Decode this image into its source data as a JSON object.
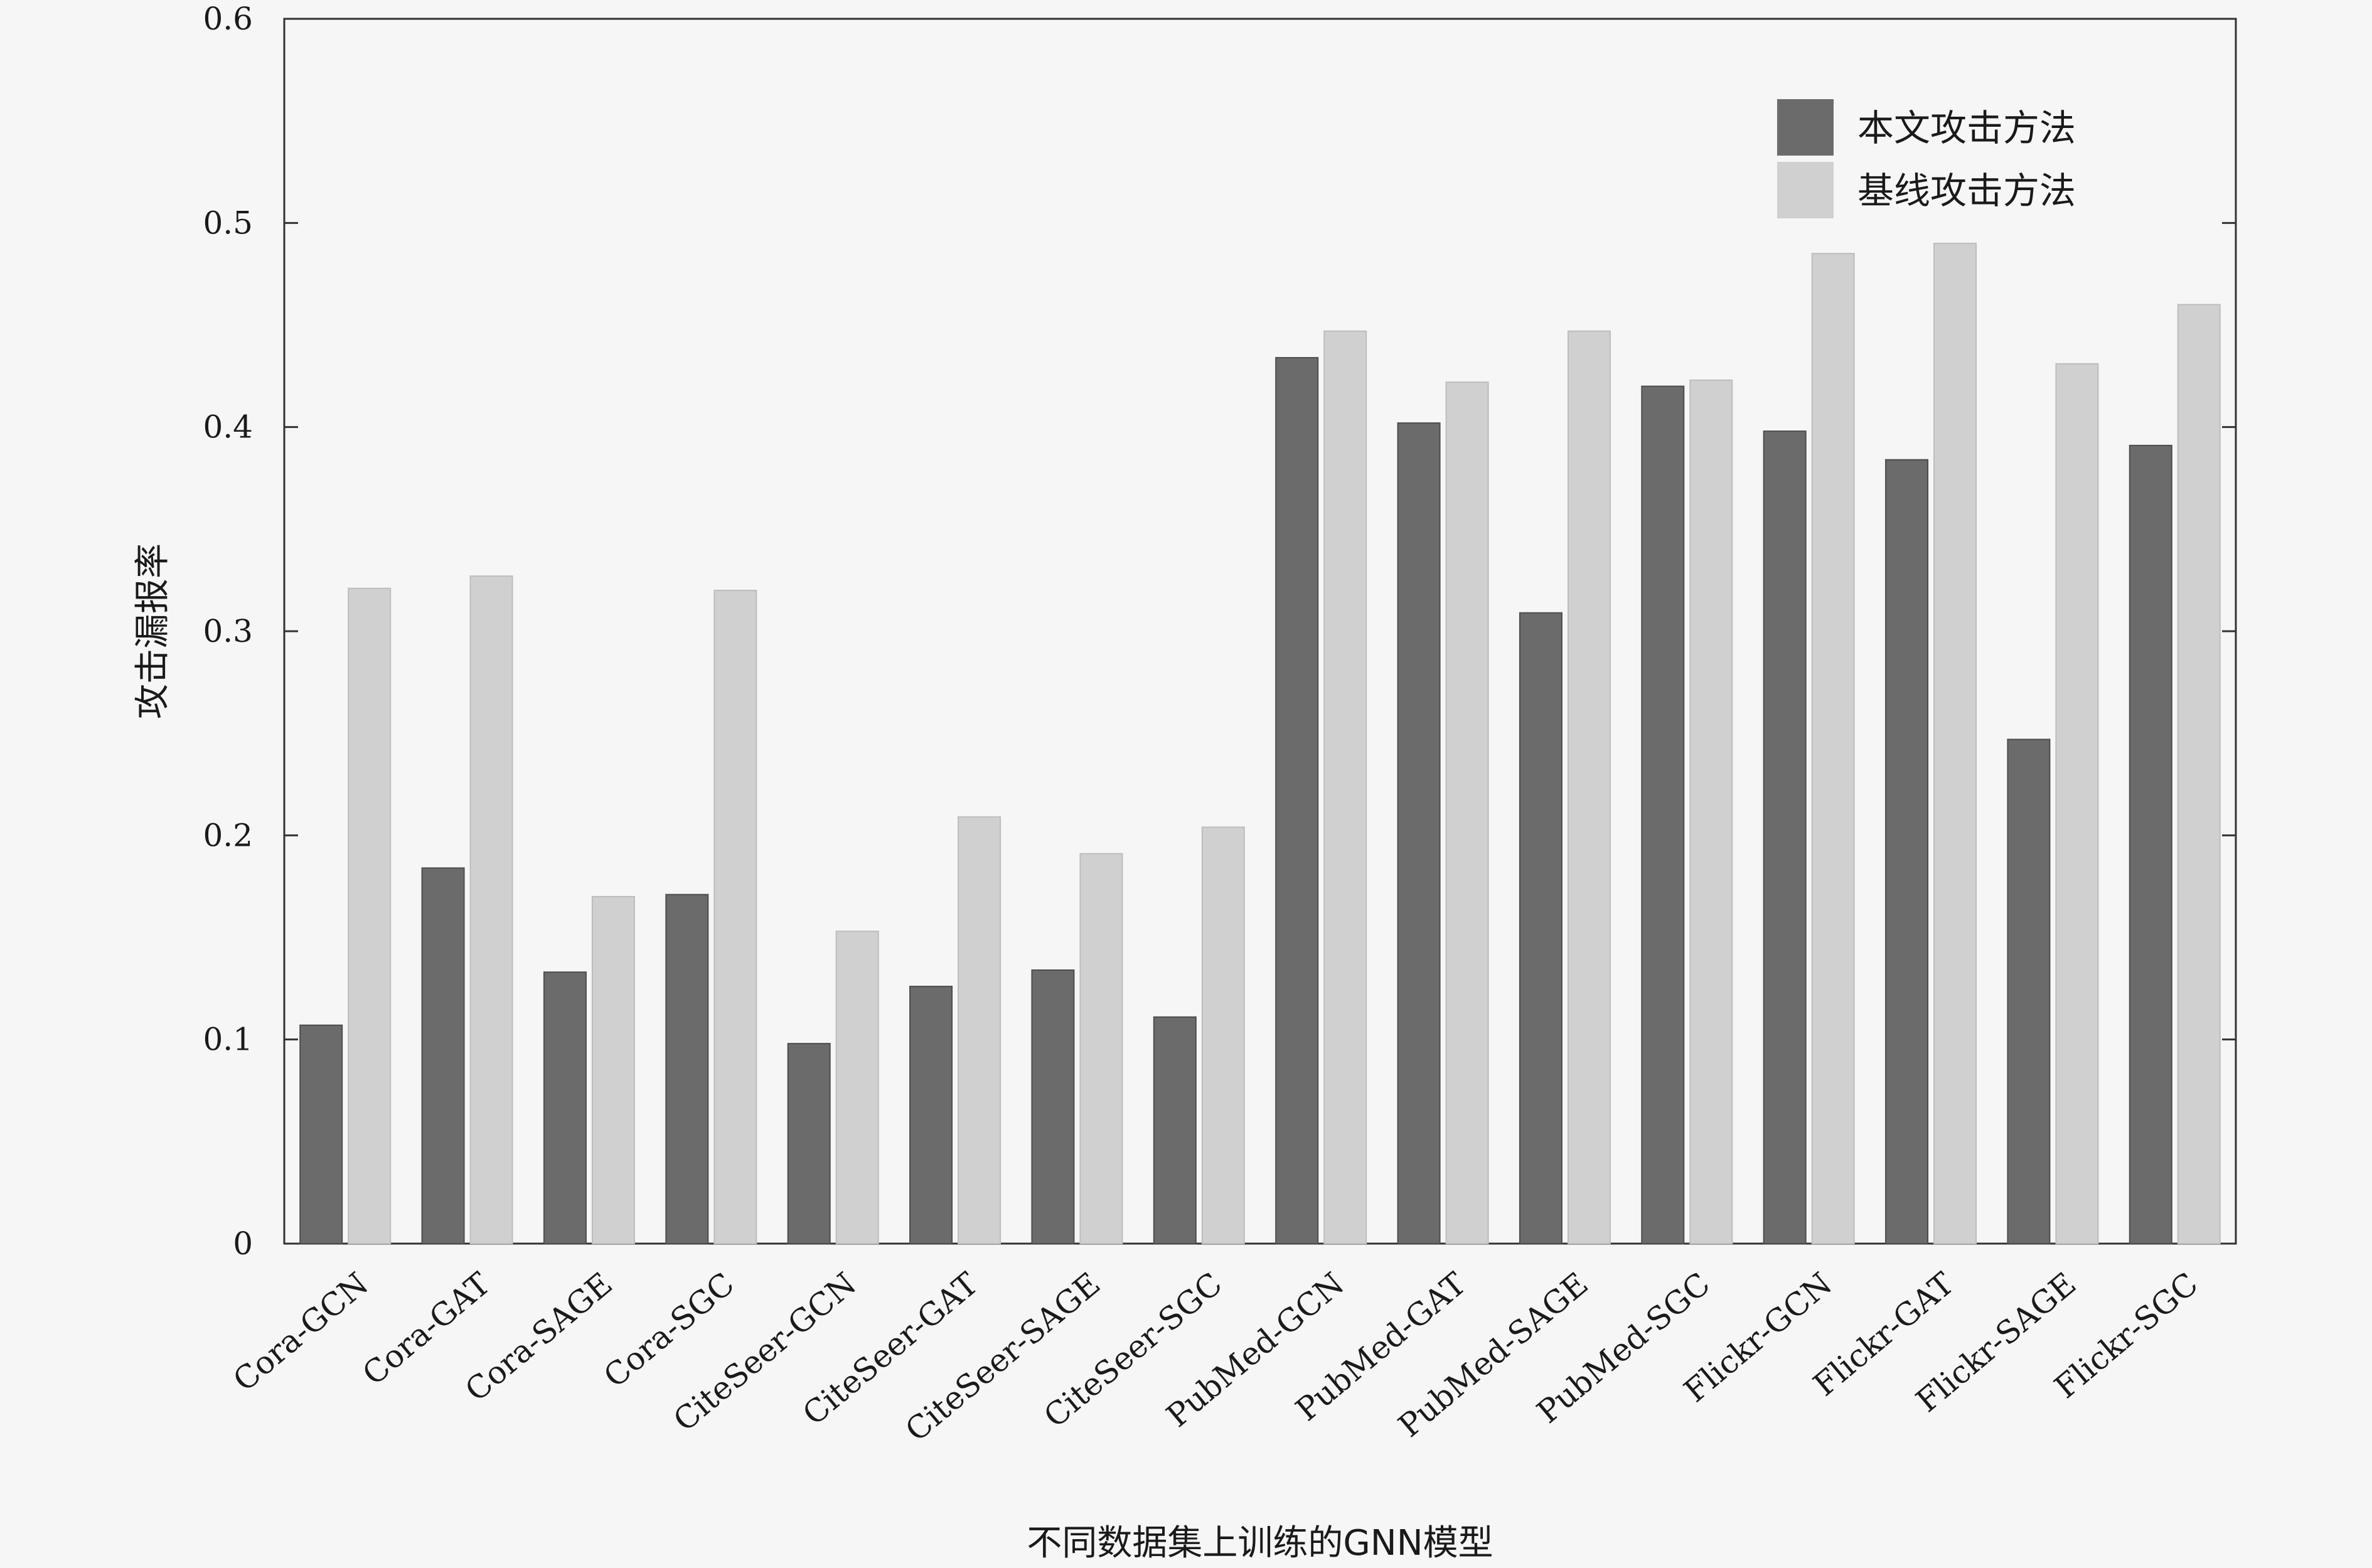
{
  "chart_data": {
    "type": "bar",
    "title": "",
    "xlabel": "不同数据集上训练的GNN模型",
    "ylabel": "攻击漏报率",
    "ylim": [
      0,
      0.6
    ],
    "yticks": [
      "0",
      "0.1",
      "0.2",
      "0.3",
      "0.4",
      "0.5",
      "0.6"
    ],
    "grid": false,
    "legend_position": "top-right",
    "categories": [
      "Cora-GCN",
      "Cora-GAT",
      "Cora-SAGE",
      "Cora-SGC",
      "CiteSeer-GCN",
      "CiteSeer-GAT",
      "CiteSeer-SAGE",
      "CiteSeer-SGC",
      "PubMed-GCN",
      "PubMed-GAT",
      "PubMed-SAGE",
      "PubMed-SGC",
      "Flickr-GCN",
      "Flickr-GAT",
      "Flickr-SAGE",
      "Flickr-SGC"
    ],
    "series": [
      {
        "name": "本文攻击方法",
        "color": "#6b6b6b",
        "values": [
          0.107,
          0.184,
          0.133,
          0.171,
          0.098,
          0.126,
          0.134,
          0.111,
          0.434,
          0.402,
          0.309,
          0.42,
          0.398,
          0.384,
          0.247,
          0.391
        ]
      },
      {
        "name": "基线攻击方法",
        "color": "#d0d0d0",
        "values": [
          0.321,
          0.327,
          0.17,
          0.32,
          0.153,
          0.209,
          0.191,
          0.204,
          0.447,
          0.422,
          0.447,
          0.423,
          0.485,
          0.49,
          0.431,
          0.46
        ]
      }
    ]
  }
}
